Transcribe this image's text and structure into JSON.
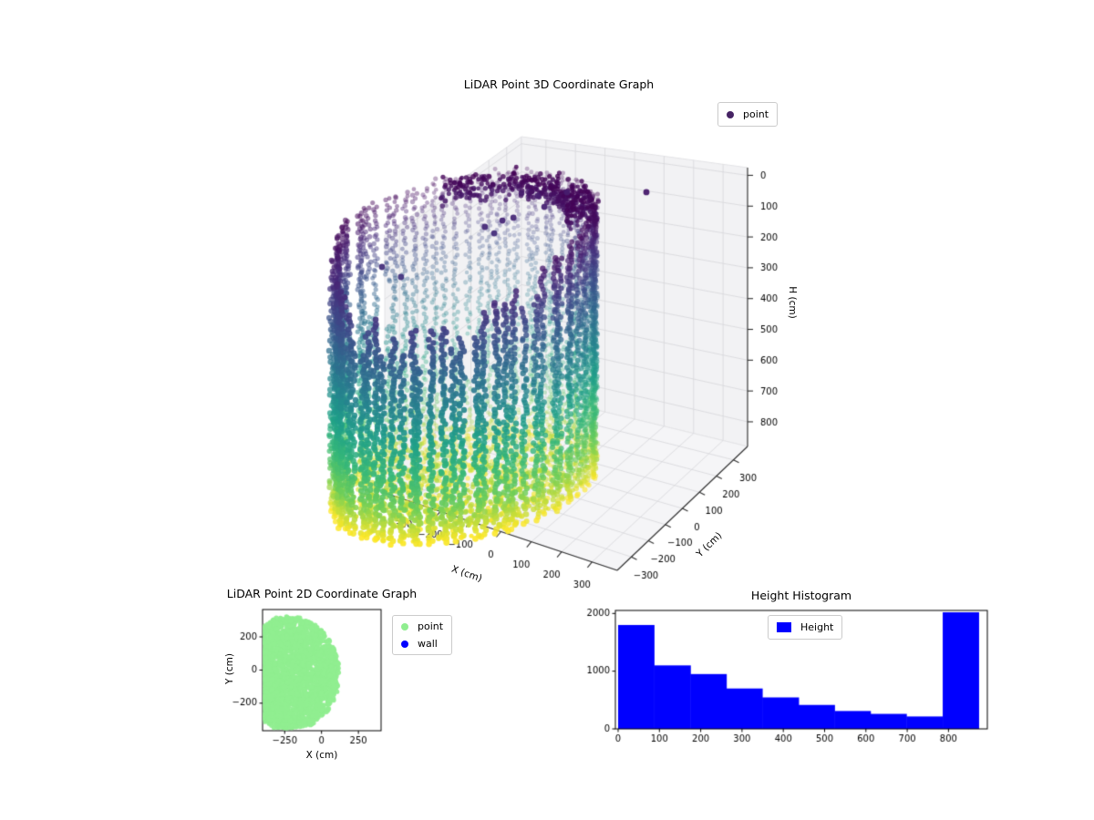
{
  "figure": {
    "background": "#ffffff"
  },
  "chart_data": [
    {
      "type": "scatter",
      "projection": "3d",
      "title": "LiDAR Point 3D Coordinate Graph",
      "xlabel": "X (cm)",
      "ylabel": "Y (cm)",
      "zlabel": "H (cm)",
      "xticks": [
        -300,
        -200,
        -100,
        0,
        100,
        200,
        300
      ],
      "yticks": [
        -300,
        -200,
        -100,
        0,
        100,
        200,
        300
      ],
      "zticks": [
        0,
        100,
        200,
        300,
        400,
        500,
        600,
        700,
        800
      ],
      "xlim": [
        -383,
        383
      ],
      "ylim": [
        -383,
        383
      ],
      "zlim": [
        -25,
        880
      ],
      "z_axis_inverted": true,
      "view": {
        "azim": -60,
        "elev": 30
      },
      "grid": true,
      "pane_color": "#f2f2f4",
      "grid_color": "#d7d7da",
      "legend": {
        "position": "upper right",
        "entries": [
          {
            "label": "point",
            "color": "#462364"
          }
        ]
      },
      "colormap": "viridis",
      "colormap_stops": [
        [
          0.0,
          "#440154"
        ],
        [
          0.125,
          "#482878"
        ],
        [
          0.25,
          "#3e4a89"
        ],
        [
          0.375,
          "#31688e"
        ],
        [
          0.5,
          "#26828e"
        ],
        [
          0.625,
          "#1f9e89"
        ],
        [
          0.75,
          "#35b779"
        ],
        [
          0.875,
          "#6ece58"
        ],
        [
          1.0,
          "#fde725"
        ]
      ],
      "point_cloud": {
        "shape": "cylindrical room scan, points color-mapped by height H",
        "radius_cm": 340,
        "center_cm": [
          0,
          0
        ],
        "h_range_cm": [
          0,
          865
        ],
        "columns": 76,
        "dh_cm": 10.5,
        "near_side_top_gap_cm": [
          120,
          280
        ],
        "floor_points": 1150,
        "floor_h_cm": [
          795,
          870
        ],
        "ceiling_ring_points": 380,
        "ceiling_h_cm": [
          4,
          72
        ],
        "outliers_xyh_cm": [
          [
            -212,
            -72,
            130
          ],
          [
            -166,
            -22,
            150
          ],
          [
            65,
            -175,
            115
          ],
          [
            87,
            -141,
            125
          ],
          [
            111,
            -174,
            105
          ],
          [
            141,
            -189,
            110
          ],
          [
            168,
            -270,
            75
          ],
          [
            209,
            -241,
            80
          ],
          [
            284,
            -223,
            78
          ],
          [
            222,
            -190,
            95
          ],
          [
            483,
            -104,
            70
          ]
        ]
      }
    },
    {
      "type": "scatter",
      "title": "LiDAR Point 2D Coordinate Graph",
      "xlabel": "X (cm)",
      "ylabel": "Y (cm)",
      "xticks": [
        -250,
        0,
        250
      ],
      "yticks": [
        -200,
        0,
        200
      ],
      "xlim": [
        -400,
        404
      ],
      "ylim": [
        -366,
        365
      ],
      "legend": {
        "position": "outside upper right",
        "entries": [
          {
            "label": "point",
            "color": "#90ee90"
          },
          {
            "label": "wall",
            "color": "#0000ff"
          }
        ]
      },
      "series": [
        {
          "name": "point",
          "appearance": "dense filled disc of scatter points, clipped by axes",
          "center_cm": [
            -220,
            -20
          ],
          "radius_cm": 340,
          "n_points": 2600,
          "color": "#90ee90"
        },
        {
          "name": "wall",
          "color": "#0000ff"
        }
      ]
    },
    {
      "type": "bar",
      "title": "Height Histogram",
      "legend": {
        "position": "upper center",
        "entries": [
          {
            "label": "Height",
            "color": "#0000ff"
          }
        ]
      },
      "bar_color": "#0000ff",
      "bin_edges": [
        0,
        87,
        175,
        262,
        349,
        437,
        524,
        611,
        698,
        786,
        873
      ],
      "values": [
        1800,
        1100,
        950,
        700,
        545,
        415,
        310,
        260,
        215,
        2020
      ],
      "xticks": [
        0,
        100,
        200,
        300,
        400,
        500,
        600,
        700,
        800
      ],
      "yticks": [
        0,
        1000,
        2000
      ],
      "xlim": [
        -7,
        895
      ],
      "ylim": [
        0,
        2052
      ]
    }
  ]
}
